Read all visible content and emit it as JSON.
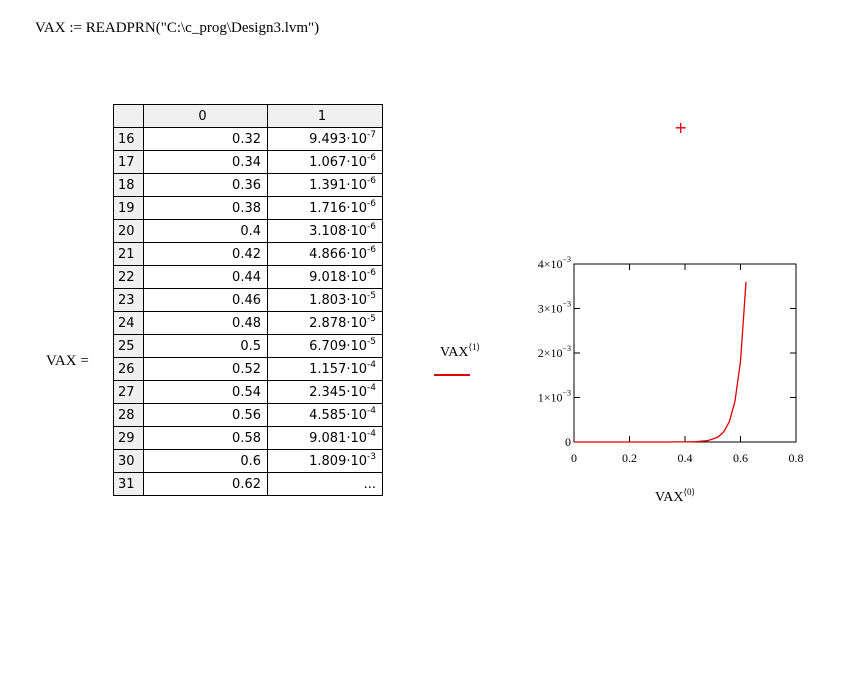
{
  "formula": "VAX := READPRN(\"C:\\c_prog\\Design3.lvm\")",
  "matrix": {
    "name_label": "VAX =",
    "col_headers": [
      "0",
      "1"
    ],
    "rows": [
      {
        "idx": "16",
        "c0": "0.32",
        "c1_mant": "9.493",
        "c1_exp": "-7"
      },
      {
        "idx": "17",
        "c0": "0.34",
        "c1_mant": "1.067",
        "c1_exp": "-6"
      },
      {
        "idx": "18",
        "c0": "0.36",
        "c1_mant": "1.391",
        "c1_exp": "-6"
      },
      {
        "idx": "19",
        "c0": "0.38",
        "c1_mant": "1.716",
        "c1_exp": "-6"
      },
      {
        "idx": "20",
        "c0": "0.4",
        "c1_mant": "3.108",
        "c1_exp": "-6"
      },
      {
        "idx": "21",
        "c0": "0.42",
        "c1_mant": "4.866",
        "c1_exp": "-6"
      },
      {
        "idx": "22",
        "c0": "0.44",
        "c1_mant": "9.018",
        "c1_exp": "-6"
      },
      {
        "idx": "23",
        "c0": "0.46",
        "c1_mant": "1.803",
        "c1_exp": "-5"
      },
      {
        "idx": "24",
        "c0": "0.48",
        "c1_mant": "2.878",
        "c1_exp": "-5"
      },
      {
        "idx": "25",
        "c0": "0.5",
        "c1_mant": "6.709",
        "c1_exp": "-5"
      },
      {
        "idx": "26",
        "c0": "0.52",
        "c1_mant": "1.157",
        "c1_exp": "-4"
      },
      {
        "idx": "27",
        "c0": "0.54",
        "c1_mant": "2.345",
        "c1_exp": "-4"
      },
      {
        "idx": "28",
        "c0": "0.56",
        "c1_mant": "4.585",
        "c1_exp": "-4"
      },
      {
        "idx": "29",
        "c0": "0.58",
        "c1_mant": "9.081",
        "c1_exp": "-4"
      },
      {
        "idx": "30",
        "c0": "0.6",
        "c1_mant": "1.809",
        "c1_exp": "-3"
      },
      {
        "idx": "31",
        "c0": "0.62",
        "c1_mant": "...",
        "c1_exp": ""
      }
    ]
  },
  "marker": "+",
  "chart_data": {
    "type": "line",
    "xlabel_base": "VAX",
    "xlabel_sup": "⟨0⟩",
    "ylabel_base": "VAX",
    "ylabel_sup": "⟨1⟩",
    "xlim": [
      0,
      0.8
    ],
    "ylim": [
      0,
      0.004
    ],
    "x_ticks": [
      "0",
      "0.2",
      "0.4",
      "0.6",
      "0.8"
    ],
    "y_ticks": [
      {
        "base": "0",
        "exp": ""
      },
      {
        "base": "1×10",
        "exp": "−3"
      },
      {
        "base": "2×10",
        "exp": "−3"
      },
      {
        "base": "3×10",
        "exp": "−3"
      },
      {
        "base": "4×10",
        "exp": "−3"
      }
    ],
    "series": [
      {
        "color": "#e00000",
        "x": [
          0,
          0.32,
          0.34,
          0.36,
          0.38,
          0.4,
          0.42,
          0.44,
          0.46,
          0.48,
          0.5,
          0.52,
          0.54,
          0.56,
          0.58,
          0.6,
          0.62
        ],
        "y": [
          0,
          9.493e-07,
          1.067e-06,
          1.391e-06,
          1.716e-06,
          3.108e-06,
          4.866e-06,
          9.018e-06,
          1.803e-05,
          2.878e-05,
          6.709e-05,
          0.0001157,
          0.0002345,
          0.0004585,
          0.0009081,
          0.001809,
          0.0036
        ]
      }
    ]
  }
}
